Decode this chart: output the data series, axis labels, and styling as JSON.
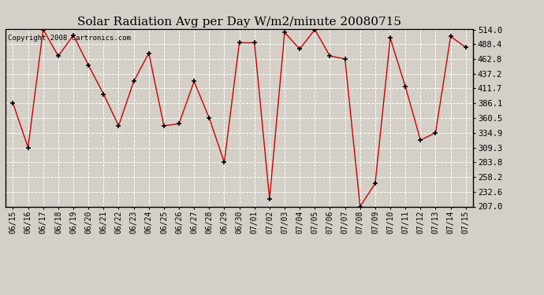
{
  "title": "Solar Radiation Avg per Day W/m2/minute 20080715",
  "copyright": "Copyright 2008 Cartronics.com",
  "dates": [
    "06/15",
    "06/16",
    "06/17",
    "06/18",
    "06/19",
    "06/20",
    "06/21",
    "06/22",
    "06/23",
    "06/24",
    "06/25",
    "06/26",
    "06/27",
    "06/28",
    "06/29",
    "06/30",
    "07/01",
    "07/02",
    "07/03",
    "07/04",
    "07/05",
    "07/06",
    "07/07",
    "07/08",
    "07/09",
    "07/10",
    "07/11",
    "07/12",
    "07/13",
    "07/14",
    "07/15"
  ],
  "values": [
    386.1,
    309.3,
    514.0,
    468.0,
    504.0,
    452.0,
    402.0,
    347.0,
    424.0,
    473.0,
    347.0,
    350.5,
    424.0,
    360.5,
    283.8,
    491.0,
    491.0,
    220.0,
    509.0,
    480.0,
    514.0,
    468.0,
    463.0,
    207.0,
    247.0,
    499.0,
    415.0,
    322.0,
    334.9,
    502.0,
    483.0
  ],
  "ylim": [
    207.0,
    514.0
  ],
  "yticks": [
    207.0,
    232.6,
    258.2,
    283.8,
    309.3,
    334.9,
    360.5,
    386.1,
    411.7,
    437.2,
    462.8,
    488.4,
    514.0
  ],
  "line_color": "#cc0000",
  "marker": "+",
  "marker_color": "#000000",
  "bg_color": "#d4d0c8",
  "grid_color": "#ffffff",
  "title_fontsize": 11,
  "copyright_fontsize": 6.5,
  "tick_fontsize": 7,
  "ytick_fontsize": 7.5
}
